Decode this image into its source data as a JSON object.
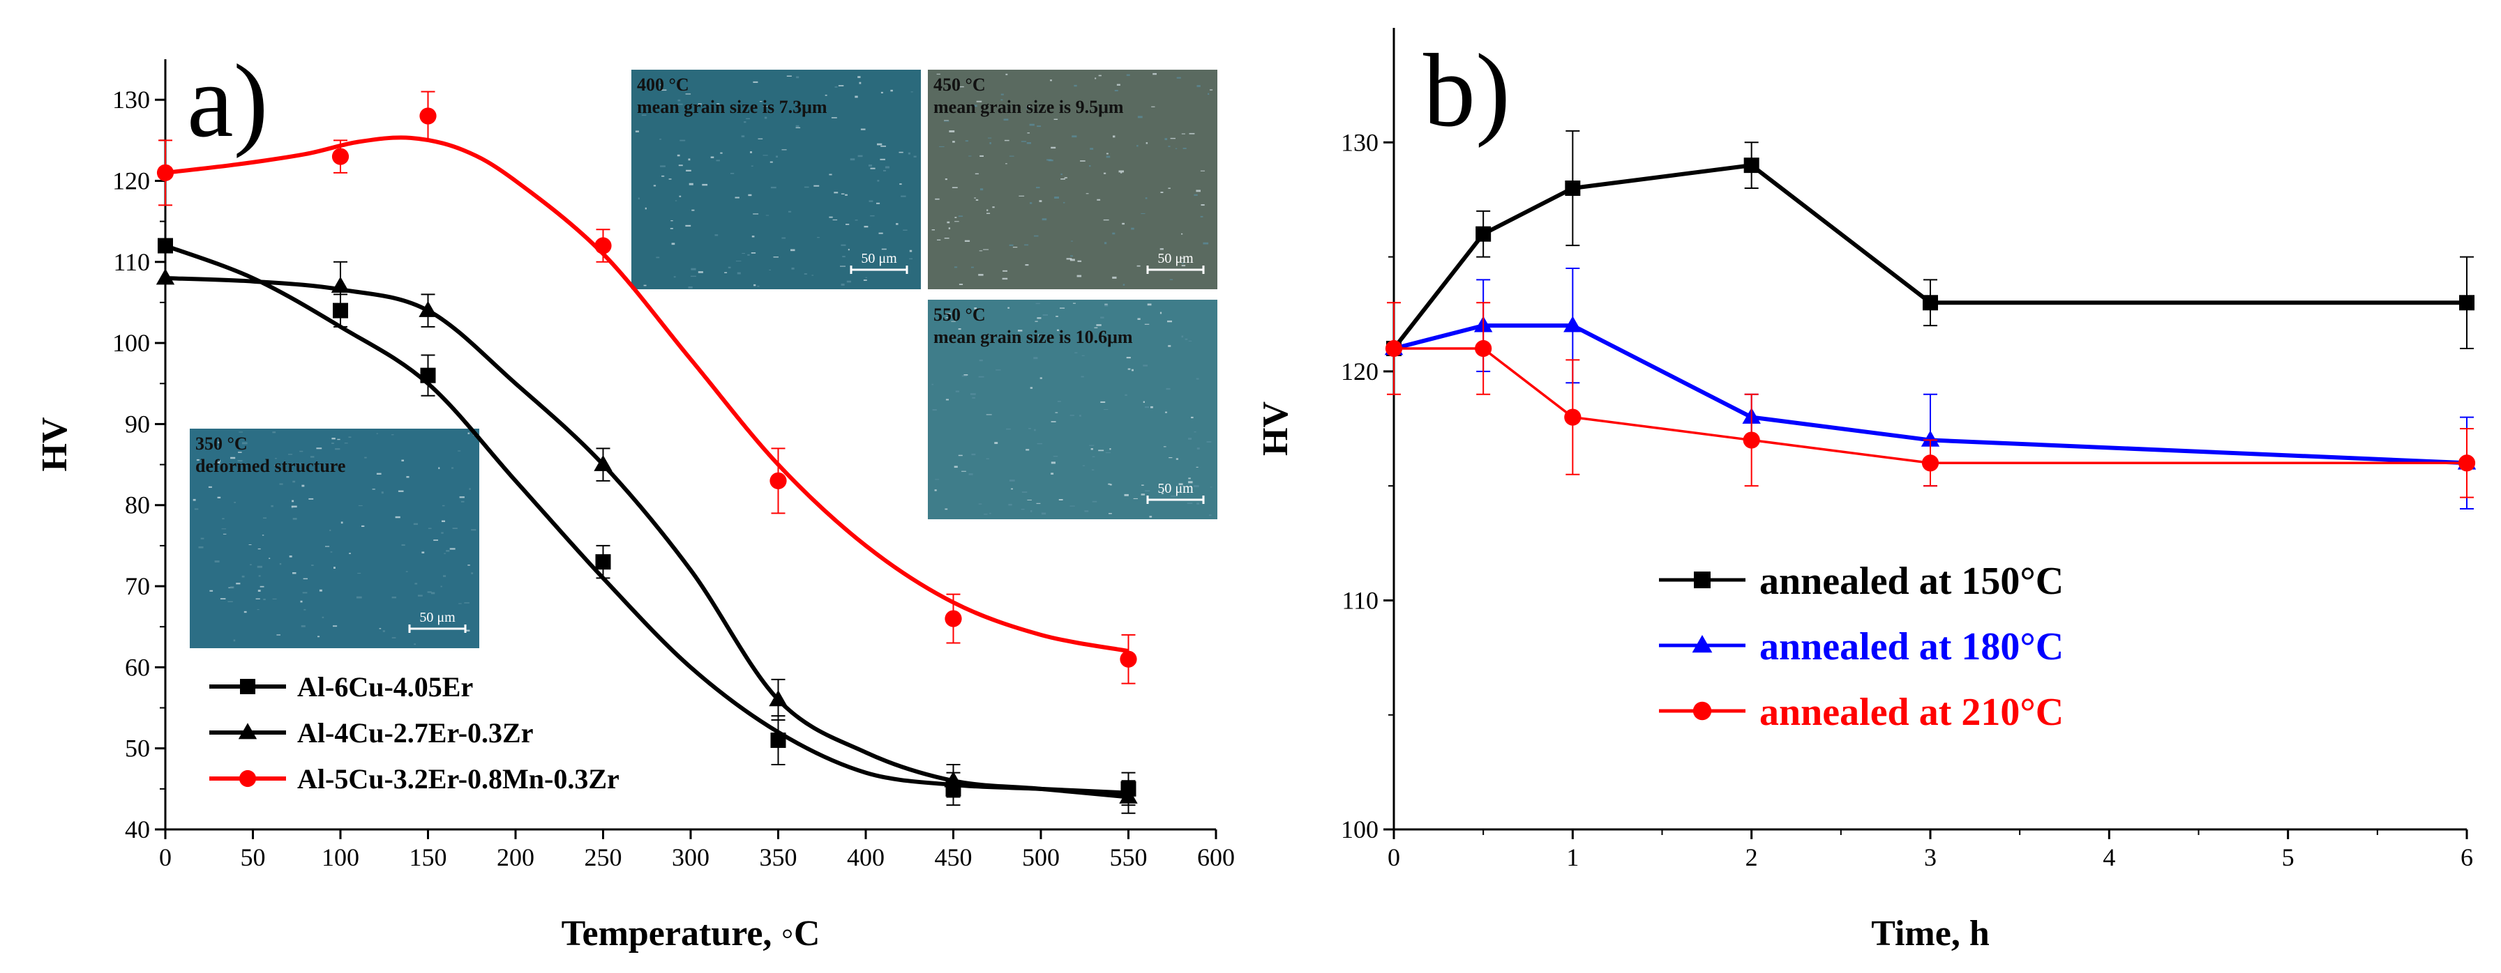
{
  "chart_data": [
    {
      "type": "line",
      "panel_label": "a)",
      "xlabel": "Temperature, ◦C",
      "ylabel": "HV",
      "xlim": [
        0,
        600
      ],
      "ylim": [
        40,
        135
      ],
      "xticks": [
        "0",
        "50",
        "100",
        "150",
        "200",
        "250",
        "300",
        "350",
        "400",
        "450",
        "500",
        "550",
        "600"
      ],
      "yticks": [
        "40",
        "50",
        "60",
        "70",
        "80",
        "90",
        "100",
        "110",
        "120",
        "130"
      ],
      "legend_position": "bottom-left",
      "series": [
        {
          "name": "Al-6Cu-4.05Er",
          "color": "#000000",
          "marker": "square",
          "points": [
            [
              0,
              112
            ],
            [
              100,
              104
            ],
            [
              150,
              96
            ],
            [
              250,
              73
            ],
            [
              350,
              51
            ],
            [
              450,
              45
            ],
            [
              550,
              45
            ]
          ],
          "errors": [
            0,
            2,
            2.5,
            2,
            3,
            2,
            2
          ],
          "curve": [
            [
              0,
              112
            ],
            [
              50,
              108
            ],
            [
              100,
              102
            ],
            [
              150,
              95
            ],
            [
              200,
              83
            ],
            [
              250,
              71
            ],
            [
              300,
              60
            ],
            [
              350,
              52
            ],
            [
              400,
              47
            ],
            [
              450,
              45.5
            ],
            [
              500,
              45
            ],
            [
              550,
              44.5
            ]
          ]
        },
        {
          "name": "Al-4Cu-2.7Er-0.3Zr",
          "color": "#000000",
          "marker": "triangle",
          "points": [
            [
              0,
              108
            ],
            [
              100,
              107
            ],
            [
              150,
              104
            ],
            [
              250,
              85
            ],
            [
              350,
              56
            ],
            [
              450,
              46
            ],
            [
              550,
              44
            ]
          ],
          "errors": [
            0,
            3,
            2,
            2,
            2.5,
            2,
            2
          ],
          "curve": [
            [
              0,
              108
            ],
            [
              50,
              107.6
            ],
            [
              100,
              106.6
            ],
            [
              150,
              104
            ],
            [
              200,
              95
            ],
            [
              250,
              85
            ],
            [
              300,
              72
            ],
            [
              350,
              56
            ],
            [
              400,
              49.5
            ],
            [
              450,
              46
            ],
            [
              500,
              45
            ],
            [
              550,
              44
            ]
          ]
        },
        {
          "name": "Al-5Cu-3.2Er-0.8Mn-0.3Zr",
          "color": "#ff0000",
          "marker": "circle",
          "points": [
            [
              0,
              121
            ],
            [
              100,
              123
            ],
            [
              150,
              128
            ],
            [
              250,
              112
            ],
            [
              350,
              83
            ],
            [
              450,
              66
            ],
            [
              550,
              61
            ]
          ],
          "errors": [
            4,
            2,
            3,
            2,
            4,
            3,
            3
          ],
          "curve": [
            [
              0,
              121
            ],
            [
              40,
              122
            ],
            [
              80,
              123.3
            ],
            [
              110,
              124.8
            ],
            [
              140,
              125.3
            ],
            [
              170,
              123.8
            ],
            [
              200,
              120
            ],
            [
              250,
              111
            ],
            [
              300,
              98
            ],
            [
              350,
              85
            ],
            [
              400,
              75
            ],
            [
              450,
              68
            ],
            [
              500,
              64
            ],
            [
              550,
              62
            ]
          ]
        }
      ],
      "micrographs": [
        {
          "line1": "350 °C",
          "line2": "deformed structure",
          "scale": "50 μm",
          "tone": "#2c6e85"
        },
        {
          "line1": "400 °C",
          "line2": "mean grain size is 7.3μm",
          "scale": "50 μm",
          "tone": "#2b6a7c"
        },
        {
          "line1": "450 °C",
          "line2": "mean grain size is 9.5μm",
          "scale": "50 μm",
          "tone": "#5a6a60"
        },
        {
          "line1": "550 °C",
          "line2": "mean grain size is 10.6μm",
          "scale": "50 μm",
          "tone": "#3f7d8a"
        }
      ]
    },
    {
      "type": "line",
      "panel_label": "b)",
      "xlabel": "Time, h",
      "ylabel": "HV",
      "xlim": [
        0,
        6
      ],
      "ylim": [
        100,
        135
      ],
      "xticks": [
        "0",
        "1",
        "2",
        "3",
        "4",
        "5",
        "6"
      ],
      "yticks": [
        "100",
        "110",
        "120",
        "130"
      ],
      "legend_position": "center",
      "series": [
        {
          "name": "annealed at 150°C",
          "color": "#000000",
          "marker": "square",
          "points": [
            [
              0,
              121
            ],
            [
              0.5,
              126
            ],
            [
              1,
              128
            ],
            [
              2,
              129
            ],
            [
              3,
              123
            ],
            [
              6,
              123
            ]
          ],
          "errors": [
            0,
            1,
            2.5,
            1,
            1,
            2
          ]
        },
        {
          "name": "annealed at 180°C",
          "color": "#0000ff",
          "marker": "triangle",
          "points": [
            [
              0,
              121
            ],
            [
              0.5,
              122
            ],
            [
              1,
              122
            ],
            [
              2,
              118
            ],
            [
              3,
              117
            ],
            [
              6,
              116
            ]
          ],
          "errors": [
            0,
            2,
            2.5,
            1,
            2,
            2
          ]
        },
        {
          "name": "annealed at 210°C",
          "color": "#ff0000",
          "marker": "circle",
          "points": [
            [
              0,
              121
            ],
            [
              0.5,
              121
            ],
            [
              1,
              118
            ],
            [
              2,
              117
            ],
            [
              3,
              116
            ],
            [
              6,
              116
            ]
          ],
          "errors": [
            2,
            2,
            2.5,
            2,
            1,
            1.5
          ]
        }
      ]
    }
  ]
}
